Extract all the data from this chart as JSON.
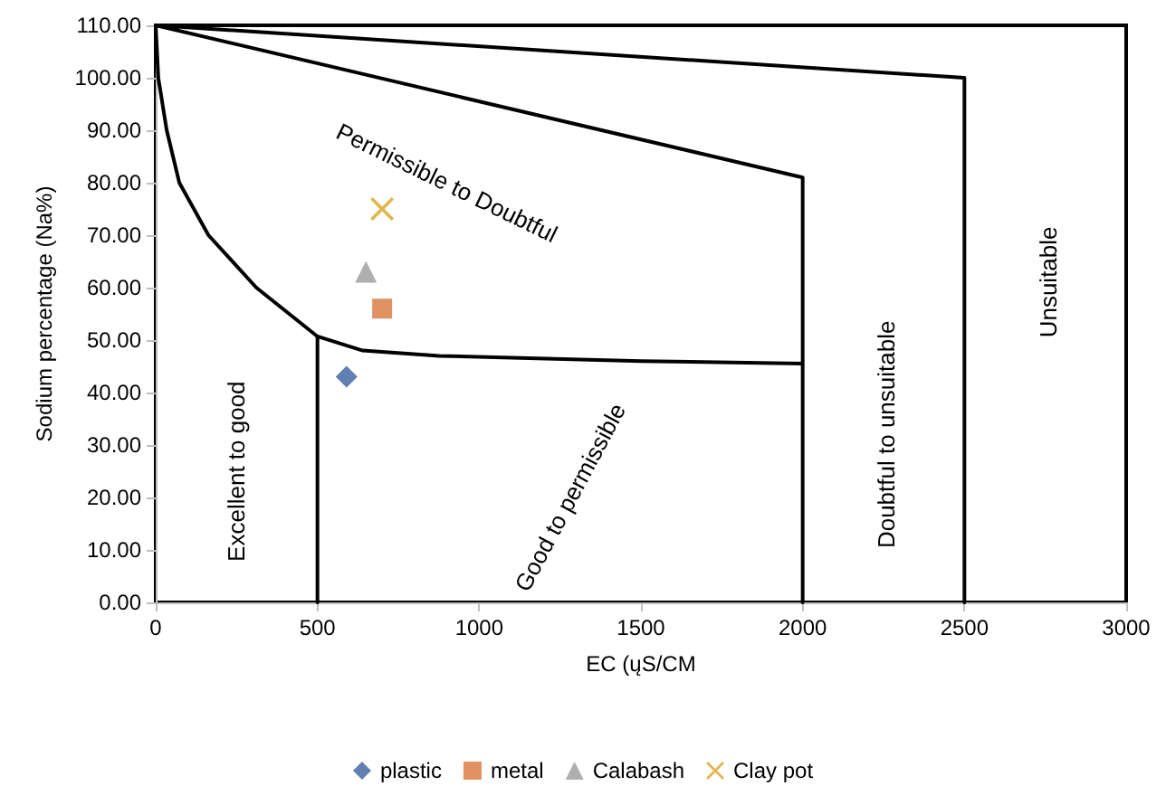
{
  "chart_data": {
    "type": "scatter",
    "xlabel": "EC (ųS/CM",
    "ylabel": "Sodium percentage (Na%)",
    "xlim": [
      0,
      3000
    ],
    "xticks": [
      0,
      500,
      1000,
      1500,
      2000,
      2500,
      3000
    ],
    "ylim": [
      0,
      110
    ],
    "yticks": [
      {
        "value": 0,
        "label": "0.00"
      },
      {
        "value": 10,
        "label": "10.00"
      },
      {
        "value": 20,
        "label": "20.00"
      },
      {
        "value": 30,
        "label": "30.00"
      },
      {
        "value": 40,
        "label": "40.00"
      },
      {
        "value": 50,
        "label": "50.00"
      },
      {
        "value": 60,
        "label": "60.00"
      },
      {
        "value": 70,
        "label": "70.00"
      },
      {
        "value": 80,
        "label": "80.00"
      },
      {
        "value": 90,
        "label": "90.00"
      },
      {
        "value": 100,
        "label": "100.00"
      },
      {
        "value": 110,
        "label": "110.00"
      }
    ],
    "grid": false,
    "legend": "bottom",
    "series": [
      {
        "type": "line",
        "color": "#000000",
        "marker": "none",
        "x": [
          0,
          2500,
          2500,
          null,
          0,
          2000,
          2000,
          null,
          0,
          8,
          34,
          73,
          163,
          311,
          500,
          640,
          877,
          1500,
          2000,
          null,
          500,
          500
        ],
        "values": [
          110,
          100,
          0,
          null,
          110,
          81,
          0,
          null,
          110,
          100,
          90,
          80,
          70,
          60,
          50.7,
          48,
          47,
          46,
          45.5,
          null,
          50.7,
          0
        ]
      },
      {
        "name": "plastic",
        "color": "#3a5f9e",
        "marker": "diamond",
        "x": [
          590
        ],
        "values": [
          43
        ]
      },
      {
        "name": "metal",
        "color": "#d9773b",
        "marker": "square",
        "x": [
          700
        ],
        "values": [
          56
        ]
      },
      {
        "name": "Calabash",
        "color": "#9b9b9b",
        "marker": "triangle",
        "x": [
          650
        ],
        "values": [
          63
        ]
      },
      {
        "name": "Clay pot",
        "color": "#d9a520",
        "marker": "cross",
        "x": [
          700
        ],
        "values": [
          75
        ]
      }
    ],
    "annotations": [
      "Excellent to good",
      "Permissible to Doubtful",
      "Good to permissible",
      "Doubtful to unsuitable",
      "Unsuitable"
    ]
  }
}
